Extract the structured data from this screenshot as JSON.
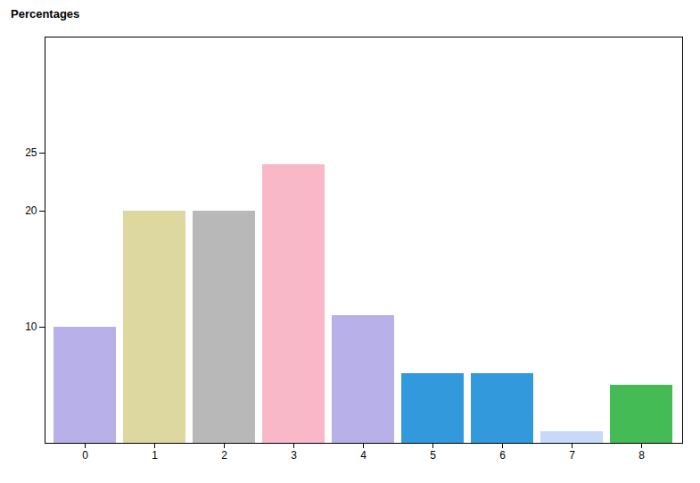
{
  "chart_data": {
    "type": "bar",
    "ylabel": "Percentages",
    "categories": [
      0,
      1,
      2,
      3,
      4,
      5,
      6,
      7,
      8
    ],
    "values": [
      10,
      20,
      20,
      24,
      11,
      6,
      6,
      1,
      5
    ],
    "colors": [
      "#b8b0e8",
      "#ddd8a0",
      "#b8b8b8",
      "#f8b8c8",
      "#b8b0e8",
      "#3399dd",
      "#3399dd",
      "#c8d8f8",
      "#44bb55"
    ],
    "ylim": [
      0,
      35
    ],
    "yticks": [
      10,
      20,
      25
    ]
  }
}
